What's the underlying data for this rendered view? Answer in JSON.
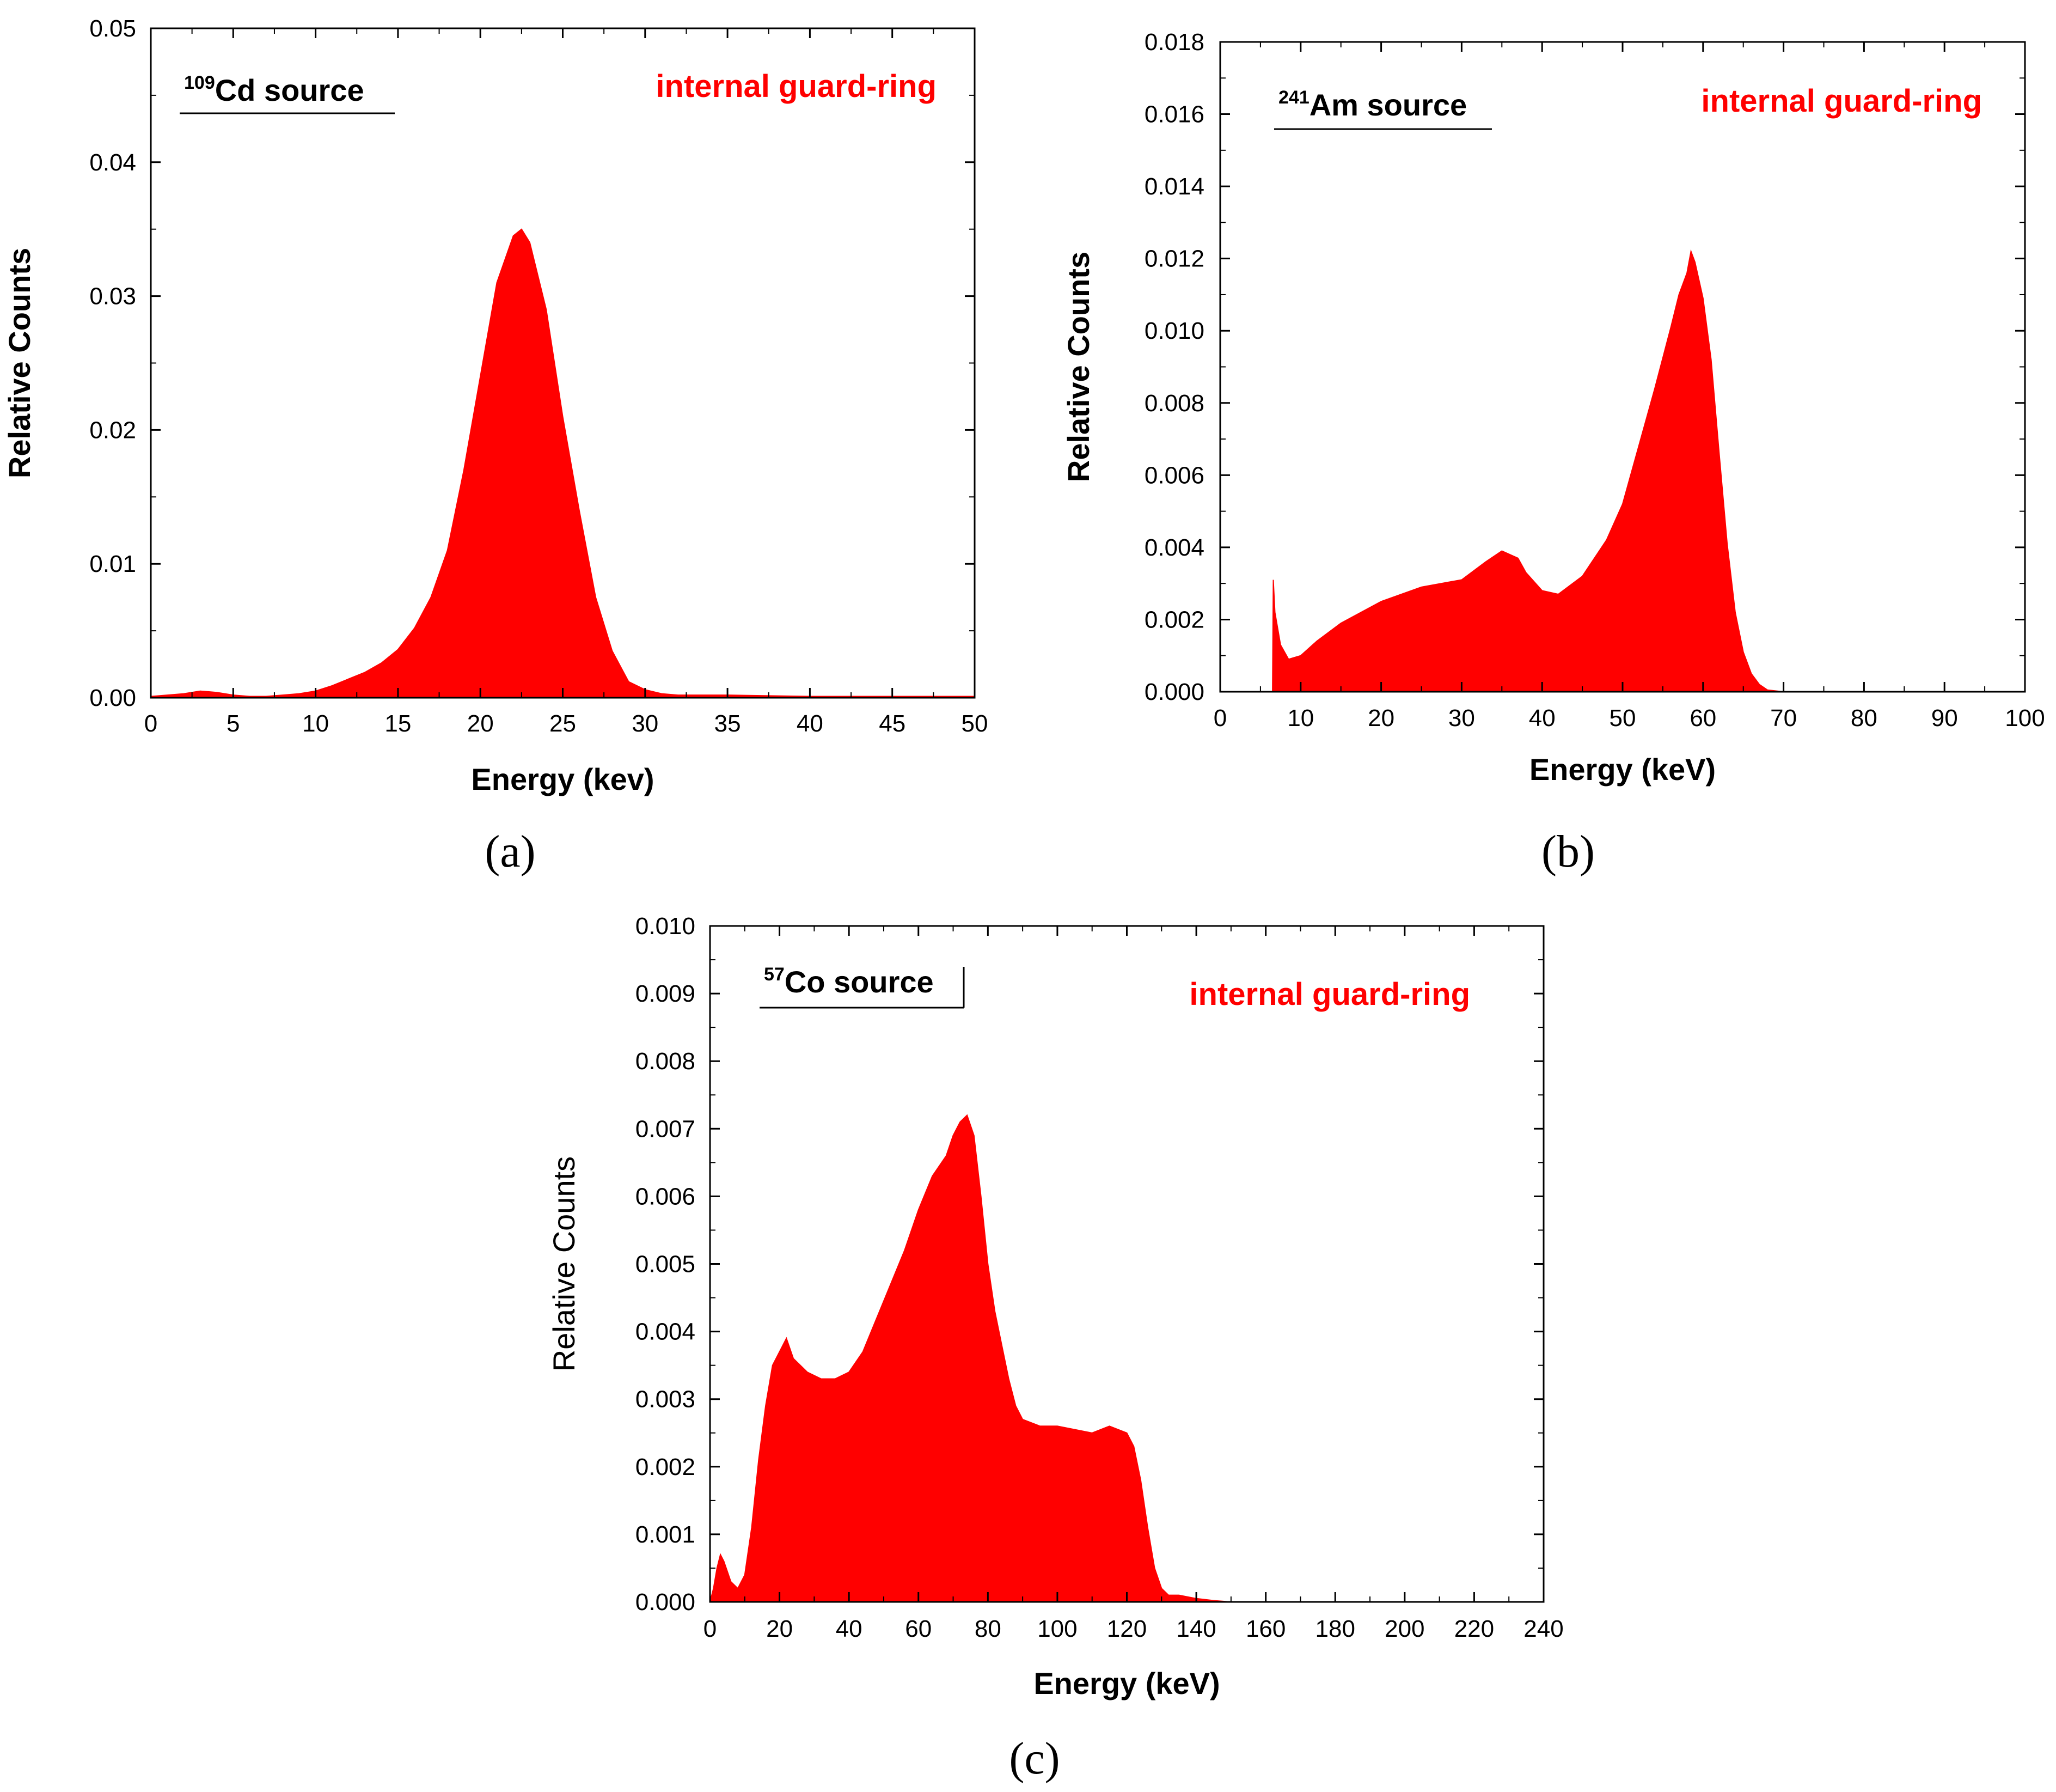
{
  "figure": {
    "captions": [
      "(a)",
      "(b)",
      "(c)"
    ]
  },
  "chart_data": [
    {
      "id": "a",
      "type": "area",
      "title": "",
      "xlabel": "Energy (kev)",
      "ylabel": "Relative Counts",
      "xlim": [
        0,
        50
      ],
      "ylim": [
        0,
        0.05
      ],
      "xticks": [
        0,
        5,
        10,
        15,
        20,
        25,
        30,
        35,
        40,
        45,
        50
      ],
      "xtick_labels": [
        "0",
        "5",
        "10",
        "15",
        "20",
        "25",
        "30",
        "35",
        "40",
        "45",
        "50"
      ],
      "yticks": [
        0,
        0.01,
        0.02,
        0.03,
        0.04,
        0.05
      ],
      "ytick_labels": [
        "0.00",
        "0.01",
        "0.02",
        "0.03",
        "0.04",
        "0.05"
      ],
      "fill_color": "#ff0000",
      "grid": false,
      "annotations": {
        "source_sup": "109",
        "source_label": "Cd source",
        "condition": "internal guard-ring"
      },
      "series": [
        {
          "x": [
            0,
            1,
            2,
            3,
            4,
            5,
            6,
            7,
            8,
            9,
            10,
            11,
            12,
            13,
            14,
            15,
            16,
            17,
            18,
            19,
            20,
            21,
            22,
            22.5,
            23,
            24,
            25,
            26,
            27,
            28,
            29,
            30,
            31,
            32,
            35,
            40,
            45,
            50
          ],
          "y": [
            0.0001,
            0.0002,
            0.0003,
            0.0005,
            0.0004,
            0.0002,
            0.0001,
            0.0001,
            0.0002,
            0.0003,
            0.0005,
            0.0009,
            0.0014,
            0.0019,
            0.0026,
            0.0036,
            0.0052,
            0.0075,
            0.011,
            0.017,
            0.024,
            0.031,
            0.0345,
            0.035,
            0.034,
            0.029,
            0.021,
            0.014,
            0.0075,
            0.0035,
            0.0012,
            0.0006,
            0.0003,
            0.0002,
            0.0002,
            0.0001,
            0.0001,
            0.0001
          ]
        }
      ]
    },
    {
      "id": "b",
      "type": "area",
      "title": "",
      "xlabel": "Energy (keV)",
      "ylabel": "Relative Counts",
      "xlim": [
        0,
        100
      ],
      "ylim": [
        0,
        0.018
      ],
      "xticks": [
        0,
        10,
        20,
        30,
        40,
        50,
        60,
        70,
        80,
        90,
        100
      ],
      "xtick_labels": [
        "0",
        "10",
        "20",
        "30",
        "40",
        "50",
        "60",
        "70",
        "80",
        "90",
        "100"
      ],
      "yticks": [
        0,
        0.002,
        0.004,
        0.006,
        0.008,
        0.01,
        0.012,
        0.014,
        0.016,
        0.018
      ],
      "ytick_labels": [
        "0.000",
        "0.002",
        "0.004",
        "0.006",
        "0.008",
        "0.010",
        "0.012",
        "0.014",
        "0.016",
        "0.018"
      ],
      "fill_color": "#ff0000",
      "grid": false,
      "annotations": {
        "source_sup": "241",
        "source_label": "Am source",
        "condition": "internal guard-ring"
      },
      "series": [
        {
          "x": [
            6.5,
            6.6,
            6.8,
            7.5,
            8.5,
            10,
            12,
            15,
            20,
            25,
            30,
            33,
            35,
            37,
            38,
            40,
            42,
            45,
            48,
            50,
            52,
            54,
            56,
            57,
            58,
            58.5,
            59,
            60,
            61,
            62,
            63,
            64,
            65,
            66,
            67,
            68,
            70
          ],
          "y": [
            0,
            0.0031,
            0.0022,
            0.0013,
            0.0009,
            0.001,
            0.0014,
            0.0019,
            0.0025,
            0.0029,
            0.0031,
            0.0036,
            0.0039,
            0.0037,
            0.0033,
            0.0028,
            0.0027,
            0.0032,
            0.0042,
            0.0052,
            0.0068,
            0.0084,
            0.0101,
            0.011,
            0.0116,
            0.0122,
            0.0119,
            0.0109,
            0.0092,
            0.0066,
            0.0041,
            0.0022,
            0.0011,
            0.0005,
            0.0002,
            5e-05,
            0
          ]
        }
      ]
    },
    {
      "id": "c",
      "type": "area",
      "title": "",
      "xlabel": "Energy (keV)",
      "ylabel": "Relative Counts",
      "xlim": [
        0,
        240
      ],
      "ylim": [
        0,
        0.01
      ],
      "xticks": [
        0,
        20,
        40,
        60,
        80,
        100,
        120,
        140,
        160,
        180,
        200,
        220,
        240
      ],
      "xtick_labels": [
        "0",
        "20",
        "40",
        "60",
        "80",
        "100",
        "120",
        "140",
        "160",
        "180",
        "200",
        "220",
        "240"
      ],
      "yticks": [
        0,
        0.001,
        0.002,
        0.003,
        0.004,
        0.005,
        0.006,
        0.007,
        0.008,
        0.009,
        0.01
      ],
      "ytick_labels": [
        "0.000",
        "0.001",
        "0.002",
        "0.003",
        "0.004",
        "0.005",
        "0.006",
        "0.007",
        "0.008",
        "0.009",
        "0.010"
      ],
      "fill_color": "#ff0000",
      "grid": false,
      "annotations": {
        "source_sup": "57",
        "source_label": "Co source",
        "condition": "internal guard-ring"
      },
      "series": [
        {
          "x": [
            0,
            1,
            2,
            3,
            4,
            6,
            8,
            10,
            12,
            14,
            16,
            18,
            20,
            22,
            24,
            28,
            32,
            36,
            40,
            44,
            48,
            52,
            56,
            60,
            64,
            68,
            70,
            72,
            74,
            76,
            78,
            80,
            82,
            84,
            86,
            88,
            90,
            95,
            100,
            110,
            115,
            120,
            122,
            124,
            126,
            128,
            130,
            132,
            135,
            140,
            145,
            150,
            160,
            200,
            240
          ],
          "y": [
            0,
            0.0002,
            0.0005,
            0.0007,
            0.0006,
            0.0003,
            0.0002,
            0.0004,
            0.0011,
            0.0021,
            0.0029,
            0.0035,
            0.0037,
            0.0039,
            0.0036,
            0.0034,
            0.0033,
            0.0033,
            0.0034,
            0.0037,
            0.0042,
            0.0047,
            0.0052,
            0.0058,
            0.0063,
            0.0066,
            0.0069,
            0.0071,
            0.0072,
            0.0069,
            0.006,
            0.005,
            0.0043,
            0.0038,
            0.0033,
            0.0029,
            0.0027,
            0.0026,
            0.0026,
            0.0025,
            0.0026,
            0.0025,
            0.0023,
            0.0018,
            0.0011,
            0.0005,
            0.0002,
            0.0001,
            0.0001,
            5e-05,
            2e-05,
            0,
            0,
            0,
            0
          ]
        }
      ]
    }
  ]
}
